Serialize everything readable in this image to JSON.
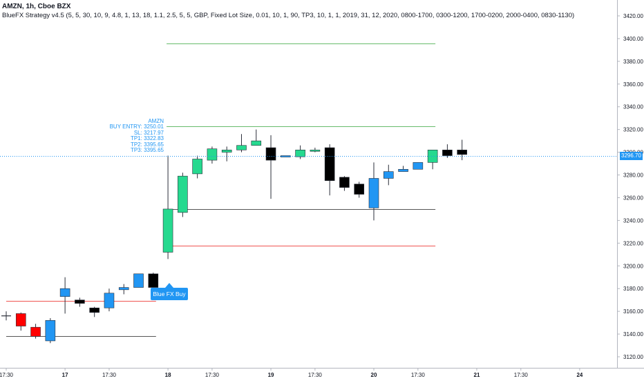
{
  "legend": {
    "symbol_line": "AMZN, 1h, Cboe BZX",
    "strategy_line": "BlueFX Strategy v4.5 (5, 5, 30, 10, 9, 4.8, 1, 13, 18, 1.1, 2.5, 5, 5, GBP, Fixed Lot Size, 0.01, 10, 1, 90, TP3, 10, 1, 1, 2019, 31, 12, 2020, 0800-1700, 0300-1200, 1700-0200, 2000-0400, 0830-1130)"
  },
  "trade_info": {
    "symbol": "AMZN",
    "entry": "BUY ENTRY: 3250.01",
    "sl": "SL: 3217.97",
    "tp1": "TP1: 3322.83",
    "tp2": "TP2: 3395.65",
    "tp3": "TP3: 3395.65"
  },
  "signal_label": "Blue FX Buy",
  "current_price": "3296.70",
  "colors": {
    "bull": "#26d98f",
    "bear": "#000000",
    "red_candle": "#ff0000",
    "blue_candle": "#2196f3",
    "tp_line": "#66bb6a",
    "sl_line": "#ef5350",
    "entry_line": "#555555",
    "price_line": "#2196f3"
  },
  "chart_data": {
    "type": "candlestick",
    "ylim": [
      3112,
      3432
    ],
    "y_ticks": [
      3120,
      3140,
      3160,
      3180,
      3200,
      3220,
      3240,
      3260,
      3280,
      3300,
      3320,
      3340,
      3360,
      3380,
      3400,
      3420
    ],
    "x_ticks": [
      {
        "label": "17:30",
        "bar": 0
      },
      {
        "label": "17",
        "bar": 4
      },
      {
        "label": "17:30",
        "bar": 7
      },
      {
        "label": "18",
        "bar": 11
      },
      {
        "label": "17:30",
        "bar": 14
      },
      {
        "label": "19",
        "bar": 18
      },
      {
        "label": "17:30",
        "bar": 21
      },
      {
        "label": "20",
        "bar": 25
      },
      {
        "label": "17:30",
        "bar": 28
      },
      {
        "label": "21",
        "bar": 32
      },
      {
        "label": "17:30",
        "bar": 35
      },
      {
        "label": "24",
        "bar": 39
      }
    ],
    "candles": [
      {
        "o": 3156,
        "h": 3160,
        "l": 3152,
        "c": 3156,
        "color": "cross"
      },
      {
        "o": 3158,
        "h": 3159,
        "l": 3143,
        "c": 3147,
        "color": "red"
      },
      {
        "o": 3146,
        "h": 3149,
        "l": 3136,
        "c": 3138,
        "color": "red"
      },
      {
        "o": 3134,
        "h": 3154,
        "l": 3132,
        "c": 3152,
        "color": "blue"
      },
      {
        "o": 3173,
        "h": 3190,
        "l": 3158,
        "c": 3180,
        "color": "blue"
      },
      {
        "o": 3170,
        "h": 3172,
        "l": 3164,
        "c": 3167,
        "color": "black"
      },
      {
        "o": 3163,
        "h": 3164,
        "l": 3155,
        "c": 3159,
        "color": "black"
      },
      {
        "o": 3163,
        "h": 3180,
        "l": 3160,
        "c": 3176,
        "color": "blue"
      },
      {
        "o": 3179,
        "h": 3184,
        "l": 3175,
        "c": 3181,
        "color": "blue"
      },
      {
        "o": 3181,
        "h": 3193,
        "l": 3181,
        "c": 3193,
        "color": "blue"
      },
      {
        "o": 3193,
        "h": 3194,
        "l": 3181,
        "c": 3181,
        "color": "black"
      },
      {
        "o": 3212,
        "h": 3297,
        "l": 3206,
        "c": 3250,
        "color": "bull"
      },
      {
        "o": 3247,
        "h": 3282,
        "l": 3243,
        "c": 3279,
        "color": "bull"
      },
      {
        "o": 3281,
        "h": 3297,
        "l": 3277,
        "c": 3294,
        "color": "bull"
      },
      {
        "o": 3293,
        "h": 3305,
        "l": 3290,
        "c": 3303,
        "color": "bull"
      },
      {
        "o": 3300,
        "h": 3305,
        "l": 3292,
        "c": 3302,
        "color": "bull"
      },
      {
        "o": 3302,
        "h": 3316,
        "l": 3300,
        "c": 3306,
        "color": "bull"
      },
      {
        "o": 3306,
        "h": 3320,
        "l": 3306,
        "c": 3310,
        "color": "bull"
      },
      {
        "o": 3304,
        "h": 3315,
        "l": 3259,
        "c": 3293,
        "color": "black"
      },
      {
        "o": 3297,
        "h": 3297,
        "l": 3297,
        "c": 3297,
        "color": "blue"
      },
      {
        "o": 3296,
        "h": 3306,
        "l": 3294,
        "c": 3302,
        "color": "bull"
      },
      {
        "o": 3301,
        "h": 3304,
        "l": 3300,
        "c": 3302,
        "color": "bull"
      },
      {
        "o": 3304,
        "h": 3307,
        "l": 3262,
        "c": 3275,
        "color": "black"
      },
      {
        "o": 3278,
        "h": 3279,
        "l": 3266,
        "c": 3269,
        "color": "black"
      },
      {
        "o": 3272,
        "h": 3274,
        "l": 3260,
        "c": 3263,
        "color": "black"
      },
      {
        "o": 3251,
        "h": 3291,
        "l": 3240,
        "c": 3277,
        "color": "blue"
      },
      {
        "o": 3277,
        "h": 3289,
        "l": 3271,
        "c": 3283,
        "color": "blue"
      },
      {
        "o": 3283,
        "h": 3288,
        "l": 3283,
        "c": 3285,
        "color": "blue"
      },
      {
        "o": 3285,
        "h": 3291,
        "l": 3285,
        "c": 3291,
        "color": "blue"
      },
      {
        "o": 3291,
        "h": 3302,
        "l": 3285,
        "c": 3302,
        "color": "bull"
      },
      {
        "o": 3302,
        "h": 3307,
        "l": 3295,
        "c": 3297,
        "color": "black"
      },
      {
        "o": 3302,
        "h": 3311,
        "l": 3293,
        "c": 3298,
        "color": "black"
      }
    ],
    "levels": [
      {
        "name": "TP3",
        "value": 3395.65,
        "from_bar": 11,
        "to_bar": 29,
        "color": "tp_line"
      },
      {
        "name": "TP1",
        "value": 3322.83,
        "from_bar": 11,
        "to_bar": 29,
        "color": "tp_line"
      },
      {
        "name": "ENTRY",
        "value": 3250.01,
        "from_bar": 11,
        "to_bar": 29,
        "color": "entry_line"
      },
      {
        "name": "SL",
        "value": 3217.97,
        "from_bar": 11,
        "to_bar": 29,
        "color": "sl_line"
      },
      {
        "name": "prev_sl",
        "value": 3169,
        "from_bar": 0,
        "to_bar": 10,
        "color": "sl_line"
      },
      {
        "name": "prev_entry",
        "value": 3138,
        "from_bar": 0,
        "to_bar": 10,
        "color": "entry_line"
      }
    ]
  }
}
